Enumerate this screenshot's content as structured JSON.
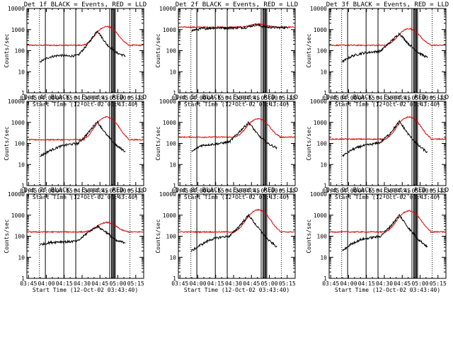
{
  "chart_data": {
    "type": "line",
    "layout": "3x3 grid",
    "shared": {
      "xlabel": "Start Time (12-Oct-02 03:43:40)",
      "ylabel": "Counts/sec",
      "x_tick_labels": [
        "03:45",
        "04:00",
        "04:15",
        "04:30",
        "04:45",
        "05:00",
        "05:15"
      ],
      "x_tick_minutes": [
        1.33,
        16.33,
        31.33,
        46.33,
        61.33,
        76.33,
        91.33
      ],
      "xlim_minutes": [
        0,
        98
      ],
      "y_scale": "log",
      "ylim": [
        1,
        10000
      ],
      "y_tick_labels": [
        "1",
        "10",
        "100",
        "1000",
        "10000"
      ],
      "y_tick_values": [
        1,
        10,
        100,
        1000,
        10000
      ],
      "series_names": [
        "Events",
        "LLD"
      ],
      "series_colors": {
        "Events": "#000000",
        "LLD": "#dd0000"
      },
      "dotted_markers_minutes": [
        10.5,
        86.5
      ],
      "solid_markers_minutes": [
        15.5,
        31.0,
        41.0,
        69.5,
        71.0,
        71.8,
        72.6,
        73.4,
        74.2
      ]
    },
    "panels": [
      {
        "detector": "1f",
        "title": "Det 1f BLACK = Events, RED = LLD",
        "lld": {
          "base": 180,
          "peak": 1400
        },
        "events": {
          "start_min": 11,
          "end_min": 83,
          "levels": [
            30,
            50,
            60,
            55,
            60,
            200,
            900,
            200,
            80,
            55
          ]
        }
      },
      {
        "detector": "2f",
        "title": "Det 2f BLACK = Events, RED = LLD",
        "lld": {
          "base": 1300,
          "peak": 1800
        },
        "events": {
          "start_min": 11,
          "end_min": 92,
          "levels": [
            900,
            1100,
            1200,
            1200,
            1200,
            1250,
            1700,
            1300,
            1250,
            1250
          ]
        }
      },
      {
        "detector": "3f",
        "title": "Det 3f BLACK = Events, RED = LLD",
        "lld": {
          "base": 180,
          "peak": 1100
        },
        "events": {
          "start_min": 11,
          "end_min": 83,
          "levels": [
            30,
            55,
            75,
            85,
            95,
            250,
            650,
            200,
            80,
            45
          ]
        }
      },
      {
        "detector": "4f",
        "title": "Det 4f BLACK = Events, RED = LLD",
        "lld": {
          "base": 150,
          "peak": 1800
        },
        "events": {
          "start_min": 11,
          "end_min": 83,
          "levels": [
            25,
            45,
            70,
            90,
            100,
            300,
            1100,
            250,
            80,
            40
          ]
        }
      },
      {
        "detector": "5f",
        "title": "Det 5f BLACK = Events, RED = LLD",
        "lld": {
          "base": 200,
          "peak": 1500
        },
        "events": {
          "start_min": 11,
          "end_min": 83,
          "levels": [
            40,
            80,
            90,
            100,
            120,
            350,
            1000,
            250,
            100,
            60
          ]
        }
      },
      {
        "detector": "6f",
        "title": "Det 6f BLACK = Events, RED = LLD",
        "lld": {
          "base": 160,
          "peak": 1800
        },
        "events": {
          "start_min": 11,
          "end_min": 83,
          "levels": [
            25,
            50,
            75,
            90,
            110,
            300,
            1100,
            250,
            80,
            35
          ]
        }
      },
      {
        "detector": "7f",
        "title": "Det 7f BLACK = Events, RED = LLD",
        "lld": {
          "base": 160,
          "peak": 450
        },
        "events": {
          "start_min": 11,
          "end_min": 83,
          "levels": [
            40,
            50,
            55,
            55,
            60,
            150,
            300,
            150,
            60,
            50
          ]
        }
      },
      {
        "detector": "8f",
        "title": "Det 8f BLACK = Events, RED = LLD",
        "lld": {
          "base": 160,
          "peak": 1800
        },
        "events": {
          "start_min": 11,
          "end_min": 83,
          "levels": [
            20,
            40,
            70,
            90,
            100,
            300,
            1000,
            250,
            70,
            30
          ]
        }
      },
      {
        "detector": "9f",
        "title": "Det 9f BLACK = Events, RED = LLD",
        "lld": {
          "base": 160,
          "peak": 1600
        },
        "events": {
          "start_min": 11,
          "end_min": 83,
          "levels": [
            20,
            45,
            70,
            85,
            100,
            280,
            1000,
            230,
            70,
            30
          ]
        }
      }
    ]
  }
}
